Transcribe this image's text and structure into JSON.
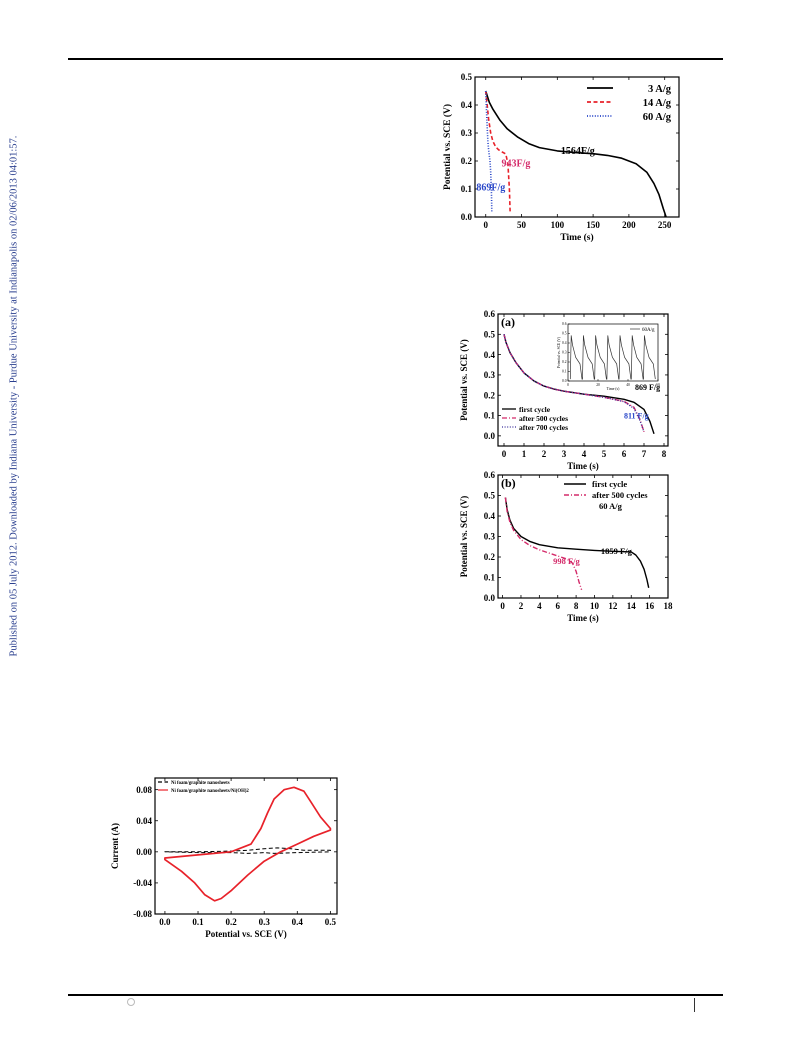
{
  "side_note": "Published on 05 July 2012. Downloaded by Indiana University - Purdue University at Indianapolis on 02/06/2013 04:01:57.",
  "chart_data": [
    {
      "type": "line",
      "id": "discharge-rates",
      "xlabel": "Time (s)",
      "ylabel": "Potential vs. SCE (V)",
      "xlim": [
        -15,
        270
      ],
      "ylim": [
        0,
        0.5
      ],
      "xticks": [
        "0",
        "50",
        "100",
        "150",
        "200",
        "250"
      ],
      "yticks": [
        "0.0",
        "0.1",
        "0.2",
        "0.3",
        "0.4",
        "0.5"
      ],
      "legend_position": "top-right",
      "series": [
        {
          "name": "3 A/g",
          "color": "#000000",
          "style": "solid",
          "x": [
            0,
            5,
            10,
            20,
            30,
            45,
            60,
            75,
            100,
            125,
            150,
            170,
            190,
            210,
            225,
            235,
            242,
            248,
            252
          ],
          "y": [
            0.45,
            0.41,
            0.385,
            0.345,
            0.315,
            0.285,
            0.262,
            0.248,
            0.236,
            0.23,
            0.226,
            0.22,
            0.21,
            0.19,
            0.16,
            0.12,
            0.08,
            0.03,
            0.0
          ]
        },
        {
          "name": "14 A/g",
          "color": "#e8222a",
          "style": "dashed",
          "x": [
            0,
            2,
            4,
            7,
            10,
            14,
            18,
            23,
            28,
            31,
            33,
            34
          ],
          "y": [
            0.45,
            0.4,
            0.35,
            0.3,
            0.27,
            0.25,
            0.24,
            0.232,
            0.225,
            0.19,
            0.1,
            0.02
          ]
        },
        {
          "name": "60 A/g",
          "color": "#2846c8",
          "style": "dotted",
          "x": [
            0,
            1,
            2,
            3,
            4,
            5,
            6,
            7,
            8,
            8.5
          ],
          "y": [
            0.45,
            0.38,
            0.32,
            0.27,
            0.24,
            0.22,
            0.2,
            0.16,
            0.08,
            0.02
          ]
        }
      ],
      "annotations": [
        {
          "text": "1564F/g",
          "x": 105,
          "y": 0.225,
          "color": "#000000"
        },
        {
          "text": "943F/g",
          "x": 22,
          "y": 0.18,
          "color": "#d42b6a"
        },
        {
          "text": "869F/g",
          "x": -13,
          "y": 0.095,
          "color": "#2846c8"
        }
      ]
    },
    {
      "type": "line",
      "id": "cycling-a",
      "panel_label": "(a)",
      "xlabel": "Time (s)",
      "ylabel": "Potential vs. SCE (V)",
      "xlim": [
        -0.3,
        8.2
      ],
      "ylim": [
        -0.05,
        0.6
      ],
      "xticks": [
        "0",
        "1",
        "2",
        "3",
        "4",
        "5",
        "6",
        "7",
        "8"
      ],
      "yticks": [
        "0.0",
        "0.1",
        "0.2",
        "0.3",
        "0.4",
        "0.5",
        "0.6"
      ],
      "legend_position": "bottom-left",
      "series": [
        {
          "name": "first cycle",
          "color": "#000000",
          "style": "solid",
          "x": [
            0,
            0.1,
            0.3,
            0.6,
            1.0,
            1.5,
            2.0,
            2.5,
            3.0,
            4.0,
            5.0,
            6.0,
            6.5,
            7.0,
            7.3,
            7.5
          ],
          "y": [
            0.5,
            0.46,
            0.41,
            0.36,
            0.31,
            0.27,
            0.245,
            0.23,
            0.22,
            0.205,
            0.195,
            0.18,
            0.165,
            0.13,
            0.07,
            0.01
          ]
        },
        {
          "name": "after 500 cycles",
          "color": "#d42b6a",
          "style": "dashdot",
          "x": [
            0,
            0.1,
            0.3,
            0.6,
            1.0,
            1.5,
            2.0,
            2.5,
            3.0,
            4.0,
            5.0,
            6.0,
            6.5,
            6.8,
            7.0
          ],
          "y": [
            0.5,
            0.46,
            0.41,
            0.36,
            0.31,
            0.27,
            0.245,
            0.23,
            0.22,
            0.205,
            0.19,
            0.17,
            0.14,
            0.08,
            0.02
          ]
        },
        {
          "name": "after 700 cycles",
          "color": "#3a2f9a",
          "style": "dotted",
          "x": [
            0,
            0.1,
            0.3,
            0.6,
            1.0,
            1.5,
            2.0,
            2.5,
            3.0,
            4.0,
            5.0,
            6.0,
            6.5,
            6.8,
            7.0
          ],
          "y": [
            0.5,
            0.46,
            0.41,
            0.36,
            0.31,
            0.27,
            0.245,
            0.23,
            0.22,
            0.205,
            0.19,
            0.168,
            0.135,
            0.075,
            0.02
          ]
        }
      ],
      "annotations": [
        {
          "text": "869 F/g",
          "x": 6.55,
          "y": 0.225,
          "color": "#000000"
        },
        {
          "text": "811 F/g",
          "x": 6.0,
          "y": 0.085,
          "color": "#2846c8"
        }
      ],
      "inset": {
        "title": "60A/g",
        "xlabel": "Time (s)",
        "ylabel": "Potential vs. SCE (V)",
        "xlim": [
          0,
          60
        ],
        "ylim": [
          0,
          0.6
        ],
        "xticks": [
          "0",
          "20",
          "40",
          "60"
        ],
        "yticks": [
          "0.0",
          "0.1",
          "0.2",
          "0.3",
          "0.4",
          "0.5",
          "0.6"
        ],
        "cycles": 7
      }
    },
    {
      "type": "line",
      "id": "cycling-b",
      "panel_label": "(b)",
      "xlabel": "Time (s)",
      "ylabel": "Potential vs. SCE (V)",
      "xlim": [
        -0.5,
        18
      ],
      "ylim": [
        0,
        0.6
      ],
      "xticks": [
        "0",
        "2",
        "4",
        "6",
        "8",
        "10",
        "12",
        "14",
        "16",
        "18"
      ],
      "yticks": [
        "0.0",
        "0.1",
        "0.2",
        "0.3",
        "0.4",
        "0.5",
        "0.6"
      ],
      "legend_position": "top-right",
      "legend_note": "60 A/g",
      "series": [
        {
          "name": "first cycle",
          "color": "#000000",
          "style": "solid",
          "x": [
            0.3,
            0.5,
            0.8,
            1.2,
            2,
            3,
            4,
            6,
            8,
            10,
            12,
            14,
            14.5,
            15,
            15.4,
            15.7,
            15.9
          ],
          "y": [
            0.49,
            0.43,
            0.38,
            0.34,
            0.3,
            0.275,
            0.26,
            0.245,
            0.238,
            0.232,
            0.228,
            0.225,
            0.21,
            0.18,
            0.14,
            0.09,
            0.05
          ]
        },
        {
          "name": "after 500 cycles",
          "color": "#d42b6a",
          "style": "dashdot",
          "x": [
            0.3,
            0.5,
            0.8,
            1.2,
            2,
            3,
            4,
            5,
            6,
            7,
            7.6,
            8.0,
            8.3,
            8.6
          ],
          "y": [
            0.49,
            0.42,
            0.37,
            0.33,
            0.285,
            0.255,
            0.235,
            0.22,
            0.205,
            0.19,
            0.17,
            0.13,
            0.08,
            0.04
          ]
        }
      ],
      "annotations": [
        {
          "text": "1859 F/g",
          "x": 10.7,
          "y": 0.215,
          "color": "#000000"
        },
        {
          "text": "998 F/g",
          "x": 5.5,
          "y": 0.165,
          "color": "#d42b6a"
        }
      ]
    },
    {
      "type": "line",
      "id": "cv-curves",
      "xlabel": "Potential vs. SCE (V)",
      "ylabel": "Current (A)",
      "xlim": [
        -0.03,
        0.52
      ],
      "ylim": [
        -0.08,
        0.095
      ],
      "xticks": [
        "0.0",
        "0.1",
        "0.2",
        "0.3",
        "0.4",
        "0.5"
      ],
      "yticks": [
        "0.08",
        "0.04",
        "0.00",
        "-0.04",
        "-0.08"
      ],
      "legend_position": "top-left",
      "series": [
        {
          "name": "Ni foam/graphite nanosheets",
          "color": "#000000",
          "style": "dashed",
          "x": [
            0.0,
            0.1,
            0.2,
            0.25,
            0.3,
            0.34,
            0.38,
            0.42,
            0.5,
            0.5,
            0.4,
            0.33,
            0.3,
            0.25,
            0.2,
            0.1,
            0.0
          ],
          "y": [
            0.0,
            0.0,
            0.001,
            0.002,
            0.004,
            0.005,
            0.004,
            0.002,
            0.002,
            0.0,
            -0.001,
            -0.002,
            -0.001,
            -0.002,
            -0.001,
            -0.001,
            0.0
          ]
        },
        {
          "name": "Ni foam/graphite nanosheets/Ni(OH)2",
          "color": "#e8222a",
          "style": "solid",
          "x": [
            0.0,
            0.1,
            0.2,
            0.26,
            0.29,
            0.31,
            0.33,
            0.36,
            0.39,
            0.42,
            0.44,
            0.47,
            0.5,
            0.5,
            0.45,
            0.4,
            0.35,
            0.3,
            0.25,
            0.2,
            0.17,
            0.15,
            0.12,
            0.09,
            0.05,
            0.0
          ],
          "y": [
            -0.008,
            -0.004,
            0.0,
            0.01,
            0.03,
            0.05,
            0.068,
            0.08,
            0.083,
            0.078,
            0.065,
            0.045,
            0.03,
            0.028,
            0.02,
            0.01,
            0.0,
            -0.012,
            -0.03,
            -0.05,
            -0.06,
            -0.063,
            -0.055,
            -0.04,
            -0.025,
            -0.01
          ]
        }
      ]
    }
  ]
}
